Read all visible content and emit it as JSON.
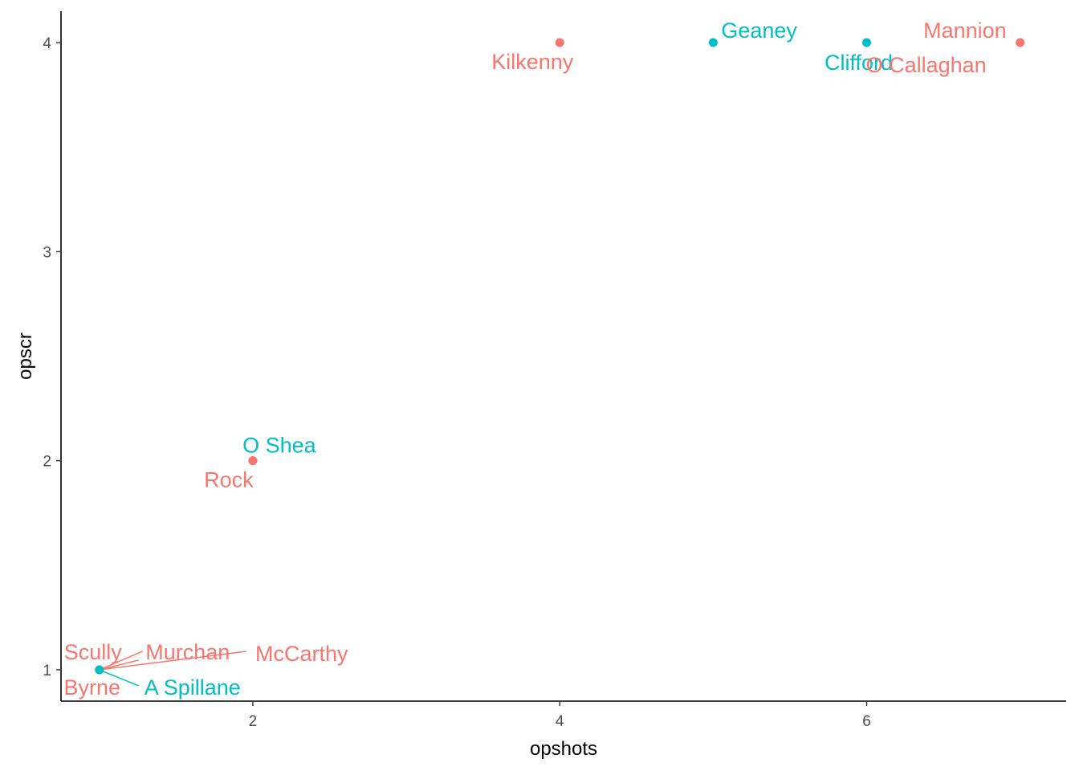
{
  "chart_data": {
    "type": "scatter",
    "title": "",
    "xlabel": "opshots",
    "ylabel": "opscr",
    "xlim": [
      0.75,
      7.3
    ],
    "ylim": [
      0.85,
      4.15
    ],
    "xticks": [
      2,
      4,
      6
    ],
    "yticks": [
      1,
      2,
      3,
      4
    ],
    "grid": false,
    "legend": "none",
    "groups": [
      {
        "color": "#F8766D"
      },
      {
        "color": "#00BFC4"
      }
    ],
    "points": [
      {
        "label": "Kilkenny",
        "x": 4,
        "y": 4,
        "group": 0
      },
      {
        "label": "Geaney",
        "x": 5,
        "y": 4,
        "group": 1
      },
      {
        "label": "Clifford",
        "x": 6,
        "y": 4,
        "group": 1
      },
      {
        "label": "Mannion",
        "x": 7,
        "y": 4,
        "group": 0
      },
      {
        "label": "O Callaghan",
        "x": 7,
        "y": 4,
        "group": 0
      },
      {
        "label": "O Shea",
        "x": 2,
        "y": 2,
        "group": 1
      },
      {
        "label": "Rock",
        "x": 2,
        "y": 2,
        "group": 0
      },
      {
        "label": "Scully",
        "x": 1,
        "y": 1,
        "group": 0
      },
      {
        "label": "Murchan",
        "x": 1,
        "y": 1,
        "group": 0
      },
      {
        "label": "McCarthy",
        "x": 1,
        "y": 1,
        "group": 0
      },
      {
        "label": "Byrne",
        "x": 1,
        "y": 1,
        "group": 0
      },
      {
        "label": "A Spillane",
        "x": 1,
        "y": 1,
        "group": 1
      }
    ]
  }
}
